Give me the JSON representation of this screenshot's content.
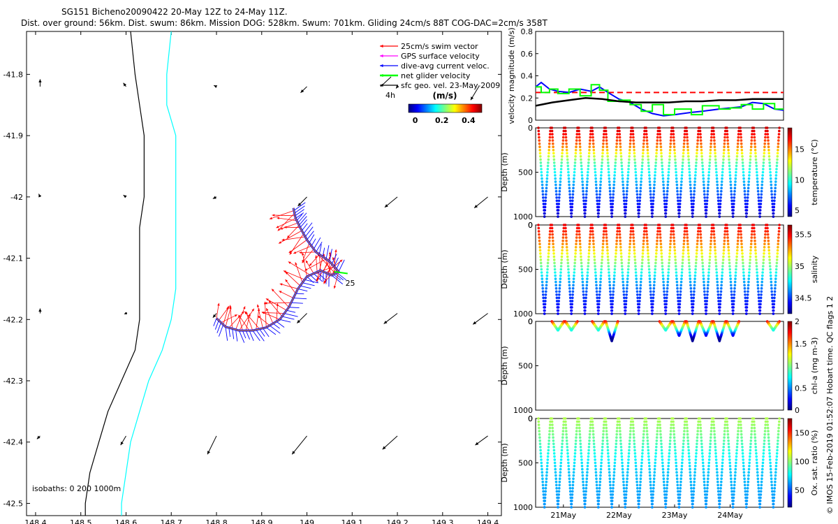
{
  "header": {
    "title": "SG151 Bicheno20090422 20-May 12Z to 24-May 11Z.",
    "subtitle": "Dist. over ground: 56km. Dist. swum: 86km. Mission DOG: 528km. Swum: 701km. Gliding 24cm/s 88T COG-DAC=2cm/s 358T"
  },
  "credit": "© IMOS 15-Feb-2019 01:52:07 Hobart time. QC flags 1  2",
  "colors": {
    "swim_vector": "#ff0000",
    "gps_velocity": "#ff00ff",
    "dac": "#0000ff",
    "net_glider": "#00ff00",
    "geo_vel": "#000000",
    "isobath_0": "#000000",
    "isobath_200": "#00ffff",
    "ref_line": "#ff0000"
  },
  "chart_data": [
    {
      "id": "map",
      "type": "line",
      "xlabel": "",
      "ylabel": "",
      "xlim": [
        148.38,
        149.43
      ],
      "ylim": [
        -42.52,
        -41.73
      ],
      "xticks": [
        148.4,
        148.5,
        148.6,
        148.7,
        148.8,
        148.9,
        149,
        149.1,
        149.2,
        149.3,
        149.4
      ],
      "xtick_labels": [
        "148.4",
        "148.5",
        "148.6",
        "148.7",
        "148.8",
        "148.9",
        "149",
        "149.1",
        "149.2",
        "149.3",
        "149.4"
      ],
      "yticks": [
        -41.8,
        -41.9,
        -42,
        -42.1,
        -42.2,
        -42.3,
        -42.4,
        -42.5
      ],
      "ytick_labels": [
        "-41.8",
        "-41.9",
        "-42",
        "-42.1",
        "-42.2",
        "-42.3",
        "-42.4",
        "-42.5"
      ],
      "isobath_note": "isobaths: 0   200   1000m",
      "track_label": "25",
      "isobath_0": [
        [
          148.61,
          -41.73
        ],
        [
          148.62,
          -41.8
        ],
        [
          148.63,
          -41.85
        ],
        [
          148.64,
          -41.9
        ],
        [
          148.64,
          -41.95
        ],
        [
          148.64,
          -42.0
        ],
        [
          148.63,
          -42.05
        ],
        [
          148.63,
          -42.1
        ],
        [
          148.63,
          -42.15
        ],
        [
          148.63,
          -42.2
        ],
        [
          148.62,
          -42.25
        ],
        [
          148.59,
          -42.3
        ],
        [
          148.56,
          -42.35
        ],
        [
          148.54,
          -42.4
        ],
        [
          148.52,
          -42.45
        ],
        [
          148.51,
          -42.5
        ],
        [
          148.51,
          -42.52
        ]
      ],
      "isobath_200": [
        [
          148.7,
          -41.73
        ],
        [
          148.69,
          -41.8
        ],
        [
          148.69,
          -41.85
        ],
        [
          148.71,
          -41.9
        ],
        [
          148.71,
          -41.95
        ],
        [
          148.71,
          -42.0
        ],
        [
          148.71,
          -42.05
        ],
        [
          148.71,
          -42.1
        ],
        [
          148.71,
          -42.15
        ],
        [
          148.7,
          -42.2
        ],
        [
          148.68,
          -42.25
        ],
        [
          148.65,
          -42.3
        ],
        [
          148.63,
          -42.35
        ],
        [
          148.61,
          -42.4
        ],
        [
          148.6,
          -42.45
        ],
        [
          148.59,
          -42.5
        ],
        [
          148.59,
          -42.52
        ]
      ],
      "track": [
        [
          148.8,
          -42.198
        ],
        [
          148.82,
          -42.212
        ],
        [
          148.85,
          -42.218
        ],
        [
          148.88,
          -42.218
        ],
        [
          148.91,
          -42.213
        ],
        [
          148.94,
          -42.2
        ],
        [
          148.96,
          -42.18
        ],
        [
          148.98,
          -42.15
        ],
        [
          149.0,
          -42.13
        ],
        [
          149.03,
          -42.12
        ],
        [
          149.055,
          -42.128
        ],
        [
          149.07,
          -42.122
        ],
        [
          149.05,
          -42.105
        ],
        [
          149.02,
          -42.09
        ],
        [
          149.0,
          -42.07
        ],
        [
          148.985,
          -42.05
        ],
        [
          148.975,
          -42.035
        ],
        [
          148.97,
          -42.018
        ]
      ],
      "geo_vectors": [
        {
          "x": 148.41,
          "y": -41.82,
          "u": 0,
          "v": 0.012
        },
        {
          "x": 148.6,
          "y": -41.82,
          "u": -0.006,
          "v": 0.006
        },
        {
          "x": 148.8,
          "y": -41.82,
          "u": -0.006,
          "v": 0.002
        },
        {
          "x": 149.0,
          "y": -41.82,
          "u": -0.014,
          "v": -0.01
        },
        {
          "x": 149.2,
          "y": -41.82,
          "u": -0.003,
          "v": -0.003
        },
        {
          "x": 149.38,
          "y": -41.82,
          "u": -0.018,
          "v": -0.022
        },
        {
          "x": 148.41,
          "y": -42.0,
          "u": -0.003,
          "v": 0.005
        },
        {
          "x": 148.6,
          "y": -42.0,
          "u": -0.006,
          "v": 0.003
        },
        {
          "x": 148.8,
          "y": -42.0,
          "u": -0.008,
          "v": -0.003
        },
        {
          "x": 149.0,
          "y": -42.0,
          "u": -0.02,
          "v": -0.015
        },
        {
          "x": 149.2,
          "y": -42.0,
          "u": -0.028,
          "v": -0.017
        },
        {
          "x": 149.4,
          "y": -42.0,
          "u": -0.03,
          "v": -0.018
        },
        {
          "x": 148.41,
          "y": -42.19,
          "u": 0,
          "v": 0.008
        },
        {
          "x": 148.6,
          "y": -42.19,
          "u": -0.004,
          "v": -0.001
        },
        {
          "x": 148.8,
          "y": -42.19,
          "u": -0.008,
          "v": -0.007
        },
        {
          "x": 149.0,
          "y": -42.19,
          "u": -0.022,
          "v": -0.016
        },
        {
          "x": 149.2,
          "y": -42.19,
          "u": -0.03,
          "v": -0.017
        },
        {
          "x": 149.4,
          "y": -42.19,
          "u": -0.033,
          "v": -0.018
        },
        {
          "x": 148.41,
          "y": -42.39,
          "u": -0.007,
          "v": -0.005
        },
        {
          "x": 148.6,
          "y": -42.39,
          "u": -0.012,
          "v": -0.015
        },
        {
          "x": 148.8,
          "y": -42.39,
          "u": -0.02,
          "v": -0.03
        },
        {
          "x": 149.0,
          "y": -42.39,
          "u": -0.033,
          "v": -0.03
        },
        {
          "x": 149.2,
          "y": -42.39,
          "u": -0.033,
          "v": -0.022
        },
        {
          "x": 149.4,
          "y": -42.39,
          "u": -0.028,
          "v": -0.015
        }
      ],
      "legend": [
        {
          "label": "25cm/s swim vector",
          "color": "#ff0000"
        },
        {
          "label": "GPS surface velocity",
          "color": "#ff00ff"
        },
        {
          "label": "dive-avg current veloc.",
          "color": "#0000ff"
        },
        {
          "label": "net glider velocity",
          "color": "#00ff00"
        },
        {
          "label": "sfc geo. vel. 23-May-2009",
          "color": "#000000"
        }
      ],
      "legend_extra": "4h",
      "colorbar": {
        "label": "(m/s)",
        "ticks": [
          0,
          0.2,
          0.4
        ],
        "tick_labels": [
          "0",
          "0.2",
          "0.4"
        ],
        "range": [
          -0.05,
          0.5
        ]
      }
    },
    {
      "id": "velocity",
      "type": "line",
      "ylabel": "velocity magnitude (m/s)",
      "xlim": [
        20.5,
        24.96
      ],
      "ylim": [
        0,
        0.8
      ],
      "yticks": [
        0,
        0.2,
        0.4,
        0.6,
        0.8
      ],
      "ytick_labels": [
        "0",
        "0.2",
        "0.4",
        "0.6",
        "0.8"
      ],
      "reference_speed": 0.25,
      "series": [
        {
          "name": "dive-avg current",
          "color": "#0000ff",
          "x": [
            20.5,
            20.6,
            20.75,
            20.9,
            21.1,
            21.3,
            21.5,
            21.65,
            21.8,
            22.0,
            22.2,
            22.4,
            22.6,
            22.8,
            23.0,
            23.3,
            23.5,
            23.8,
            24.0,
            24.2,
            24.4,
            24.6,
            24.8,
            24.96
          ],
          "y": [
            0.3,
            0.34,
            0.28,
            0.26,
            0.25,
            0.28,
            0.26,
            0.3,
            0.25,
            0.19,
            0.16,
            0.1,
            0.06,
            0.04,
            0.05,
            0.07,
            0.08,
            0.1,
            0.11,
            0.12,
            0.16,
            0.15,
            0.1,
            0.09
          ]
        },
        {
          "name": "net glider velocity",
          "color": "#00ff00",
          "x": [
            20.5,
            20.6,
            20.75,
            20.9,
            21.1,
            21.3,
            21.5,
            21.65,
            21.8,
            22.0,
            22.2,
            22.4,
            22.6,
            22.8,
            23.0,
            23.3,
            23.5,
            23.8,
            24.0,
            24.2,
            24.4,
            24.6,
            24.8,
            24.96
          ],
          "y": [
            0.3,
            0.25,
            0.28,
            0.24,
            0.28,
            0.22,
            0.32,
            0.27,
            0.17,
            0.18,
            0.14,
            0.08,
            0.14,
            0.05,
            0.1,
            0.05,
            0.13,
            0.1,
            0.11,
            0.14,
            0.1,
            0.15,
            0.1,
            0.1
          ]
        },
        {
          "name": "surface geostrophic",
          "color": "#000000",
          "x": [
            20.5,
            20.8,
            21.1,
            21.4,
            21.7,
            22.0,
            22.3,
            22.6,
            22.9,
            23.2,
            23.5,
            23.8,
            24.1,
            24.4,
            24.7,
            24.96
          ],
          "y": [
            0.13,
            0.16,
            0.18,
            0.2,
            0.19,
            0.17,
            0.16,
            0.16,
            0.16,
            0.17,
            0.17,
            0.18,
            0.18,
            0.19,
            0.19,
            0.19
          ]
        }
      ]
    },
    {
      "id": "temperature",
      "type": "scatter",
      "ylabel": "Depth (m)",
      "cbar_label": "temperature (°C)",
      "ylim": [
        0,
        1000
      ],
      "yticks": [
        500,
        1000
      ],
      "ytick_labels": [
        "500",
        "1000"
      ],
      "cbar_range": [
        4,
        18.5
      ],
      "cbar_ticks": [
        5,
        10,
        15
      ],
      "cbar_tick_labels": [
        "5",
        "10",
        "15"
      ],
      "profile": {
        "depth": [
          0,
          200,
          400,
          600,
          800,
          1000
        ],
        "value": [
          17.5,
          15,
          10.5,
          8.5,
          6.5,
          5
        ]
      },
      "dives": 18,
      "max_depth": 1000,
      "colormap": "jet"
    },
    {
      "id": "salinity",
      "type": "scatter",
      "ylabel": "Depth (m)",
      "cbar_label": "salinity",
      "ylim": [
        0,
        1000
      ],
      "yticks": [
        0,
        500,
        1000
      ],
      "ytick_labels": [
        "0",
        "500",
        "1000"
      ],
      "cbar_range": [
        34.25,
        35.65
      ],
      "cbar_ticks": [
        34.5,
        35,
        35.5
      ],
      "cbar_tick_labels": [
        "34.5",
        "35",
        "35.5"
      ],
      "profile": {
        "depth": [
          0,
          200,
          400,
          600,
          800,
          1000
        ],
        "value": [
          35.5,
          35.3,
          35.0,
          34.7,
          34.5,
          34.4
        ]
      },
      "dives": 18,
      "max_depth": 1000,
      "colormap": "jet"
    },
    {
      "id": "chlorophyll",
      "type": "scatter",
      "ylabel": "Depth (m)",
      "cbar_label": "chl-a (mg m-3)",
      "ylim": [
        0,
        1000
      ],
      "yticks": [
        0,
        500,
        1000
      ],
      "ytick_labels": [
        "0",
        "500",
        "1000"
      ],
      "cbar_range": [
        0,
        2
      ],
      "cbar_ticks": [
        0,
        0.5,
        1,
        1.5,
        2
      ],
      "cbar_tick_labels": [
        "0",
        "0.5",
        "1",
        "1.5",
        "2"
      ],
      "profile": {
        "depth": [
          0,
          50,
          100,
          150,
          200
        ],
        "value": [
          1.8,
          1.2,
          0.8,
          0.3,
          0.05
        ]
      },
      "dives": 18,
      "max_depth": 200,
      "dives_with_data": [
        [
          1,
          2,
          4,
          5,
          9,
          10,
          11,
          12,
          13,
          14,
          17
        ],
        [
          1,
          1,
          1,
          3,
          1,
          2,
          3,
          2,
          3,
          2,
          1
        ]
      ],
      "colormap": "jet"
    },
    {
      "id": "oxygen",
      "type": "scatter",
      "ylabel": "Depth (m)",
      "cbar_label": "Ox. sat. ratio (%)",
      "ylim": [
        0,
        1000
      ],
      "yticks": [
        0,
        500,
        1000
      ],
      "ytick_labels": [
        "0",
        "500",
        "1000"
      ],
      "xticks": [
        21,
        22,
        23,
        24
      ],
      "xtick_labels": [
        "21May",
        "22May",
        "23May",
        "24May"
      ],
      "cbar_range": [
        20,
        175
      ],
      "cbar_ticks": [
        50,
        100,
        150
      ],
      "cbar_tick_labels": [
        "50",
        "100",
        "150"
      ],
      "profile": {
        "depth": [
          0,
          200,
          400,
          600,
          800,
          1000
        ],
        "value": [
          105,
          95,
          80,
          70,
          65,
          62
        ]
      },
      "dives": 18,
      "max_depth": 1000,
      "colormap": "jet"
    }
  ]
}
